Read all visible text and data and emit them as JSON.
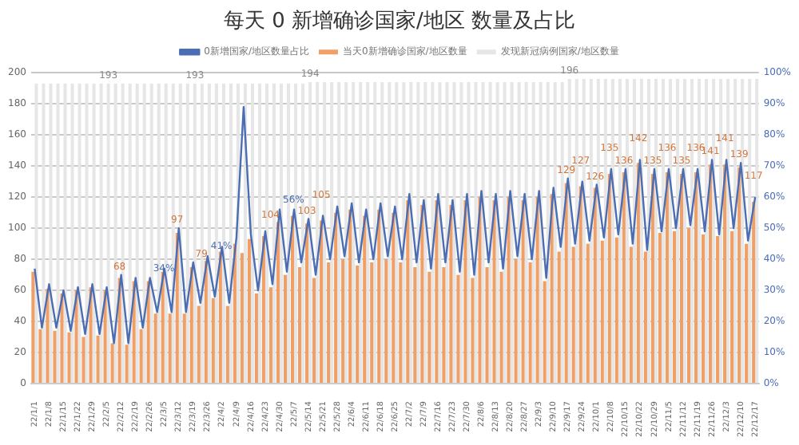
{
  "chart_data": {
    "type": "bar",
    "title": "每天 0 新增确诊国家/地区 数量及占比",
    "categories": [
      "22/1/1",
      null,
      "22/1/8",
      null,
      "22/1/15",
      null,
      "22/1/22",
      null,
      "22/1/29",
      null,
      "22/2/5",
      null,
      "22/2/12",
      null,
      "22/2/19",
      null,
      "22/2/26",
      null,
      "22/3/5",
      null,
      "22/3/12",
      null,
      "22/3/19",
      null,
      "22/3/26",
      null,
      "22/4/2",
      null,
      "22/4/9",
      null,
      "22/4/16",
      null,
      "22/4/23",
      null,
      "22/4/30",
      null,
      "22/5/7",
      null,
      "22/5/14",
      null,
      "22/5/21",
      null,
      "22/5/28",
      null,
      "22/6/4",
      null,
      "22/6/11",
      null,
      "22/6/18",
      null,
      "22/6/25",
      null,
      "22/7/2",
      null,
      "22/7/9",
      null,
      "22/7/16",
      null,
      "22/7/23",
      null,
      "22/7/30",
      null,
      "22/8/6",
      null,
      "22/8/13",
      null,
      "22/8/20",
      null,
      "22/8/27",
      null,
      "22/9/3",
      null,
      "22/9/10",
      null,
      "22/9/17",
      null,
      "22/9/24",
      null,
      "22/10/1",
      null,
      "22/10/8",
      null,
      "22/10/15",
      null,
      "22/10/22",
      null,
      "22/10/29",
      null,
      "22/11/5",
      null,
      "22/11/12",
      null,
      "22/11/19",
      null,
      "22/11/26",
      null,
      "22/12/3",
      null,
      "22/12/10",
      null,
      "22/12/17"
    ],
    "series": [
      {
        "name": "发现新冠病例国家/地区数量",
        "color": "#e6e6e6",
        "values": [
          193,
          193,
          193,
          193,
          193,
          193,
          193,
          193,
          193,
          193,
          193,
          193,
          193,
          193,
          193,
          193,
          193,
          193,
          193,
          193,
          193,
          193,
          193,
          193,
          193,
          193,
          193,
          193,
          193,
          193,
          193,
          193,
          193,
          193,
          193,
          193,
          193,
          193,
          194,
          194,
          194,
          194,
          194,
          194,
          194,
          194,
          194,
          194,
          194,
          194,
          194,
          194,
          194,
          194,
          194,
          194,
          194,
          194,
          194,
          194,
          194,
          194,
          194,
          194,
          194,
          194,
          194,
          194,
          194,
          194,
          194,
          194,
          194,
          194,
          196,
          196,
          196,
          196,
          196,
          196,
          196,
          196,
          196,
          196,
          196,
          196,
          196,
          196,
          196,
          196,
          196,
          196,
          196,
          196,
          196,
          196,
          196,
          196,
          196,
          196,
          196
        ],
        "value_labels": [
          null,
          null,
          null,
          null,
          null,
          null,
          null,
          null,
          null,
          null,
          "193",
          null,
          null,
          null,
          null,
          null,
          null,
          null,
          null,
          null,
          null,
          null,
          "193",
          null,
          null,
          null,
          null,
          null,
          null,
          null,
          null,
          null,
          null,
          null,
          null,
          null,
          null,
          null,
          "194",
          null,
          null,
          null,
          null,
          null,
          null,
          null,
          null,
          null,
          null,
          null,
          null,
          null,
          null,
          null,
          null,
          null,
          null,
          null,
          null,
          null,
          null,
          null,
          null,
          null,
          null,
          null,
          null,
          null,
          null,
          null,
          null,
          null,
          null,
          null,
          "196",
          null,
          null,
          null,
          null,
          null,
          null,
          null,
          null,
          null,
          null,
          null,
          null,
          null,
          null,
          null,
          null,
          null,
          null,
          null,
          null,
          null,
          null,
          null,
          null,
          null,
          null
        ]
      },
      {
        "name": "当天0新增确诊国家/地区数量",
        "color": "#f0a066",
        "values": [
          72,
          35,
          61,
          34,
          58,
          33,
          60,
          30,
          62,
          31,
          60,
          26,
          68,
          25,
          66,
          35,
          66,
          45,
          72,
          45,
          97,
          45,
          75,
          50,
          79,
          55,
          85,
          50,
          90,
          84,
          93,
          58,
          95,
          62,
          104,
          70,
          108,
          75,
          103,
          68,
          105,
          78,
          110,
          80,
          112,
          76,
          108,
          78,
          112,
          80,
          110,
          78,
          118,
          75,
          115,
          72,
          118,
          75,
          115,
          70,
          118,
          68,
          120,
          75,
          118,
          72,
          120,
          80,
          118,
          78,
          120,
          66,
          122,
          85,
          129,
          88,
          127,
          90,
          126,
          92,
          135,
          94,
          136,
          88,
          142,
          85,
          135,
          97,
          136,
          98,
          135,
          100,
          136,
          96,
          141,
          95,
          141,
          98,
          139,
          90,
          117
        ],
        "value_labels": [
          null,
          null,
          null,
          null,
          null,
          null,
          null,
          null,
          null,
          null,
          null,
          null,
          "68",
          null,
          null,
          null,
          null,
          null,
          null,
          null,
          "97",
          null,
          null,
          null,
          "79",
          null,
          null,
          null,
          null,
          null,
          null,
          null,
          null,
          null,
          "104",
          null,
          null,
          null,
          "103",
          null,
          "105",
          null,
          null,
          null,
          null,
          null,
          null,
          null,
          null,
          null,
          null,
          null,
          null,
          null,
          null,
          null,
          null,
          null,
          null,
          null,
          null,
          null,
          null,
          null,
          null,
          null,
          null,
          null,
          null,
          null,
          null,
          null,
          null,
          null,
          "129",
          null,
          "127",
          null,
          "126",
          null,
          "135",
          null,
          "136",
          null,
          "142",
          null,
          "135",
          null,
          "136",
          null,
          "135",
          null,
          "136",
          null,
          "141",
          null,
          "141",
          null,
          "139",
          null,
          "117"
        ]
      },
      {
        "name": "0新增国家/地区数量占比",
        "type": "line",
        "axis": "y2",
        "color": "#4a6db3",
        "values": [
          37,
          18,
          32,
          18,
          30,
          17,
          31,
          16,
          32,
          16,
          31,
          13,
          35,
          13,
          34,
          18,
          34,
          23,
          37,
          23,
          50,
          23,
          39,
          26,
          41,
          28,
          44,
          26,
          47,
          89,
          48,
          30,
          49,
          32,
          56,
          36,
          56,
          39,
          53,
          35,
          54,
          40,
          57,
          41,
          58,
          39,
          56,
          40,
          58,
          41,
          57,
          40,
          61,
          39,
          59,
          37,
          61,
          39,
          59,
          36,
          61,
          35,
          62,
          39,
          61,
          37,
          62,
          41,
          61,
          40,
          62,
          34,
          63,
          44,
          66,
          45,
          65,
          46,
          64,
          47,
          69,
          48,
          69,
          45,
          72,
          43,
          69,
          49,
          69,
          50,
          69,
          51,
          69,
          49,
          72,
          48,
          72,
          50,
          71,
          46,
          60
        ],
        "value_labels": [
          null,
          null,
          null,
          null,
          null,
          null,
          null,
          null,
          null,
          null,
          null,
          null,
          null,
          null,
          null,
          null,
          "34%",
          null,
          null,
          null,
          null,
          null,
          null,
          null,
          "41%",
          null,
          null,
          null,
          null,
          null,
          null,
          null,
          null,
          null,
          "56%",
          null,
          null,
          null,
          null,
          null,
          null,
          null,
          null,
          null,
          null,
          null,
          null,
          null,
          null,
          null,
          null,
          null,
          null,
          null,
          null,
          null,
          null,
          null,
          null,
          null,
          null,
          null,
          null,
          null,
          null,
          null,
          null,
          null,
          null,
          null,
          null,
          null,
          null,
          null,
          null,
          null,
          null,
          null,
          null,
          null,
          null,
          null,
          null,
          null,
          null,
          null,
          null,
          null,
          null,
          null,
          null,
          null,
          null,
          null,
          null,
          null,
          null,
          null,
          null,
          null,
          null
        ]
      }
    ],
    "ylim": [
      0,
      200
    ],
    "yticks": [
      0,
      20,
      40,
      60,
      80,
      100,
      120,
      140,
      160,
      180,
      200
    ],
    "y2lim": [
      0,
      100
    ],
    "y2ticks": [
      {
        "value": 0,
        "label": "0%"
      },
      {
        "value": 10,
        "label": "10%"
      },
      {
        "value": 20,
        "label": "20%"
      },
      {
        "value": 30,
        "label": "30%"
      },
      {
        "value": 40,
        "label": "40%"
      },
      {
        "value": 50,
        "label": "50%"
      },
      {
        "value": 60,
        "label": "60%"
      },
      {
        "value": 70,
        "label": "70%"
      },
      {
        "value": 80,
        "label": "80%"
      },
      {
        "value": 90,
        "label": "90%"
      },
      {
        "value": 100,
        "label": "100%"
      }
    ],
    "grid": "y",
    "legend": "top"
  }
}
